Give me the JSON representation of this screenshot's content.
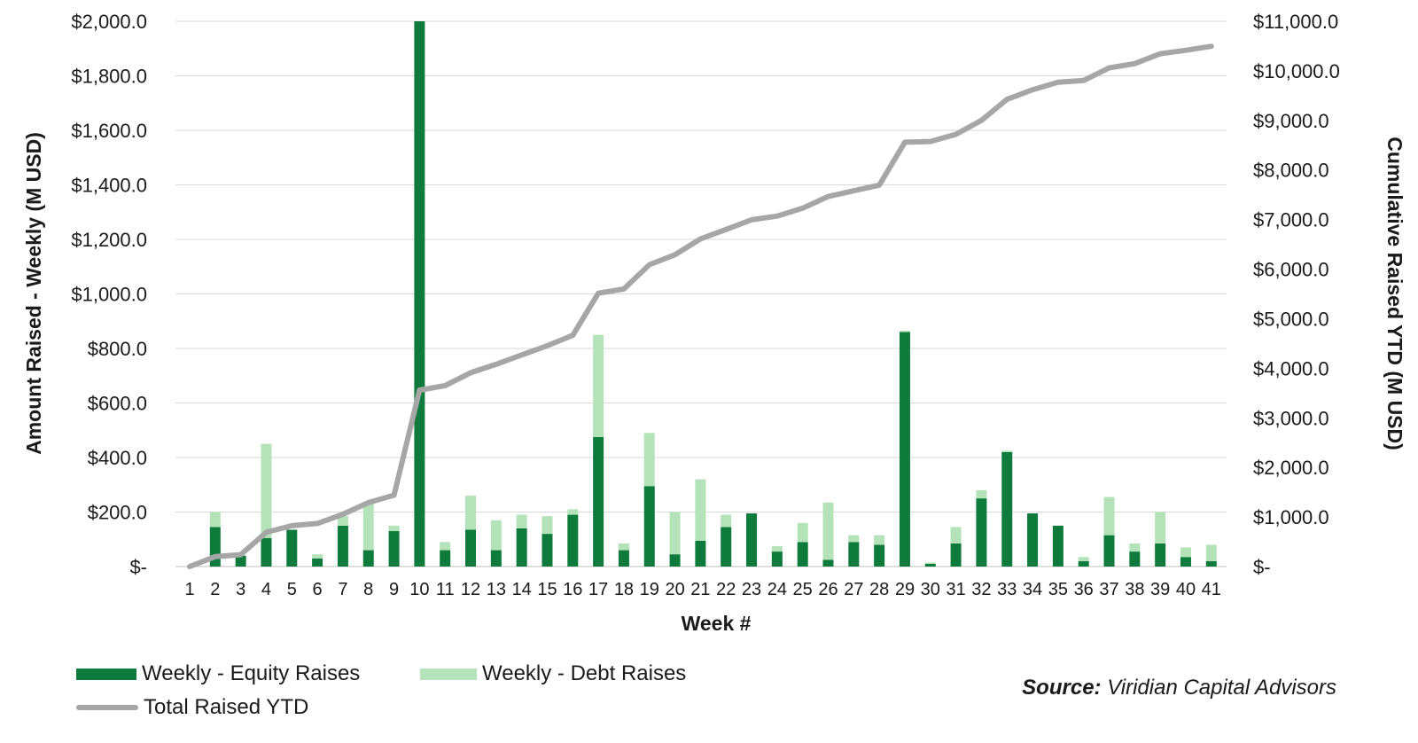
{
  "chart_data": {
    "type": "bar",
    "stacked": true,
    "xlabel": "Week #",
    "ylabel": "Amount Raised - Weekly (M USD)",
    "y2label": "Cumulative Raised YTD (M USD)",
    "ylim": [
      0,
      2000
    ],
    "y2lim": [
      0,
      11000
    ],
    "yticks": [
      "$-",
      "$200.0",
      "$400.0",
      "$600.0",
      "$800.0",
      "$1,000.0",
      "$1,200.0",
      "$1,400.0",
      "$1,600.0",
      "$1,800.0",
      "$2,000.0"
    ],
    "y2ticks": [
      "$-",
      "$1,000.0",
      "$2,000.0",
      "$3,000.0",
      "$4,000.0",
      "$5,000.0",
      "$6,000.0",
      "$7,000.0",
      "$8,000.0",
      "$9,000.0",
      "$10,000.0",
      "$11,000.0"
    ],
    "grid": true,
    "legend_position": "bottom-left",
    "categories": [
      "1",
      "2",
      "3",
      "4",
      "5",
      "6",
      "7",
      "8",
      "9",
      "10",
      "11",
      "12",
      "13",
      "14",
      "15",
      "16",
      "17",
      "18",
      "19",
      "20",
      "21",
      "22",
      "23",
      "24",
      "25",
      "26",
      "27",
      "28",
      "29",
      "30",
      "31",
      "32",
      "33",
      "34",
      "35",
      "36",
      "37",
      "38",
      "39",
      "40",
      "41"
    ],
    "series": [
      {
        "name": "Weekly - Equity Raises",
        "type": "bar",
        "axis": "left",
        "color": "#0e7a3c",
        "values": [
          0,
          145,
          40,
          105,
          135,
          30,
          150,
          60,
          130,
          2000,
          60,
          135,
          60,
          140,
          120,
          190,
          475,
          60,
          295,
          45,
          95,
          145,
          195,
          55,
          90,
          25,
          90,
          80,
          860,
          10,
          85,
          250,
          420,
          195,
          150,
          20,
          115,
          55,
          85,
          35,
          20
        ]
      },
      {
        "name": "Weekly - Debt Raises",
        "type": "bar",
        "axis": "left",
        "color": "#b5e3b9",
        "values": [
          0,
          55,
          0,
          345,
          0,
          15,
          35,
          175,
          20,
          0,
          30,
          125,
          110,
          50,
          65,
          20,
          375,
          25,
          195,
          155,
          225,
          45,
          0,
          20,
          70,
          210,
          25,
          35,
          5,
          5,
          60,
          30,
          5,
          0,
          0,
          15,
          140,
          30,
          115,
          35,
          60
        ]
      },
      {
        "name": "Total Raised YTD",
        "type": "line",
        "axis": "right",
        "color": "#a6a6a6",
        "values": [
          0,
          200,
          240,
          690,
          825,
          870,
          1055,
          1290,
          1440,
          3560,
          3650,
          3910,
          4080,
          4270,
          4455,
          4665,
          5515,
          5600,
          6090,
          6290,
          6610,
          6800,
          6995,
          7070,
          7230,
          7465,
          7580,
          7695,
          8560,
          8575,
          8720,
          9000,
          9425,
          9620,
          9770,
          9805,
          10060,
          10145,
          10345,
          10415,
          10495
        ]
      }
    ]
  },
  "legend": {
    "equity_label": "Weekly - Equity Raises",
    "debt_label": "Weekly - Debt Raises",
    "total_label": "Total Raised YTD"
  },
  "source": {
    "prefix": "Source:",
    "text": "Viridian Capital Advisors"
  }
}
